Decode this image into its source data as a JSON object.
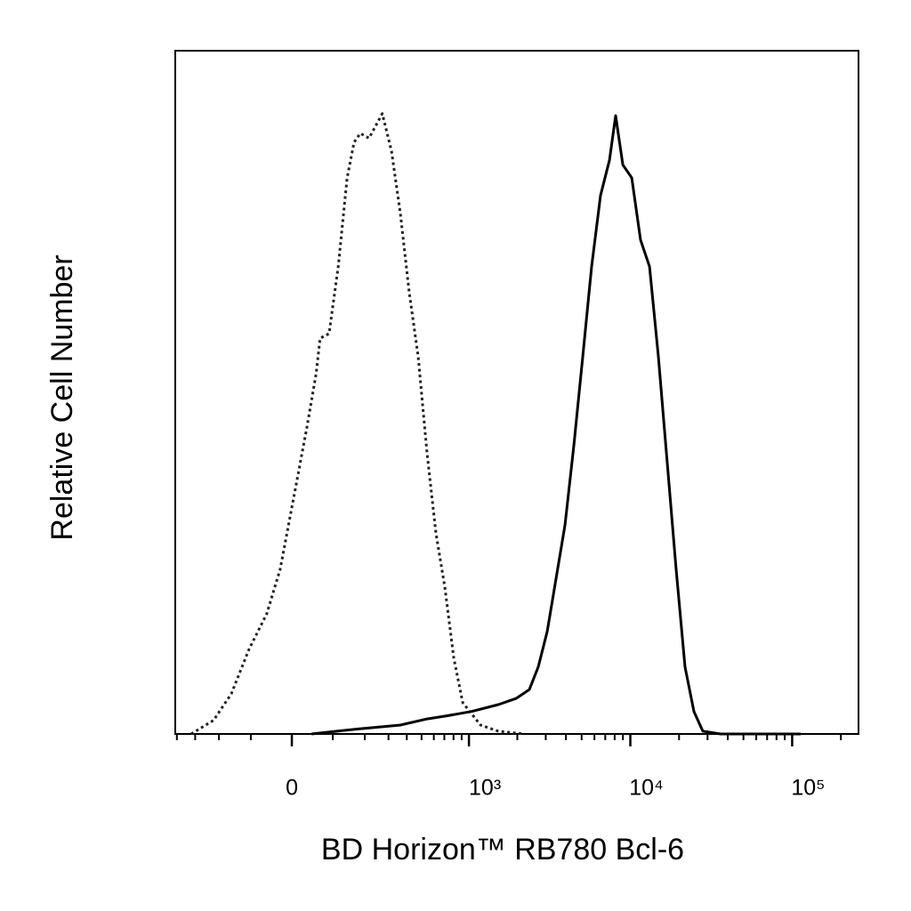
{
  "chart_data": {
    "type": "line",
    "xlabel": "BD Horizon™ RB780 Bcl-6",
    "ylabel": "Relative Cell Number",
    "xscale": "biexponential",
    "xlim": [
      -410,
      257000
    ],
    "xticks": [
      0,
      {
        "value": 1000,
        "label": "10³"
      },
      {
        "value": 10000,
        "label": "10⁴"
      },
      {
        "value": 100000,
        "label": "10⁵"
      }
    ],
    "xminorticks": [
      -400,
      -300,
      -200,
      -100,
      100,
      200,
      300,
      400,
      500,
      600,
      700,
      800,
      900,
      2000,
      3000,
      4000,
      5000,
      6000,
      7000,
      8000,
      9000,
      20000,
      30000,
      40000,
      50000,
      60000,
      70000,
      80000,
      90000,
      200000
    ],
    "ylim": [
      0,
      100
    ],
    "series": [
      {
        "color": "#222222",
        "line_style": "dotted",
        "x": [
          -320,
          -220,
          -157,
          -105,
          -59,
          -27,
          4,
          35,
          57,
          67,
          90,
          115,
          141,
          163,
          184,
          216,
          271,
          315,
          362,
          416,
          475,
          543,
          620,
          705,
          803,
          914,
          1181,
          1526,
          2229
        ],
        "values": [
          0,
          2.0,
          5.9,
          12.4,
          17.6,
          24.1,
          34.5,
          44.9,
          52.7,
          57.9,
          58.6,
          68.4,
          81.4,
          86.6,
          87.9,
          87.2,
          90.8,
          85.3,
          76.2,
          64.5,
          55.3,
          41.0,
          29.3,
          21.5,
          11.1,
          4.6,
          1.3,
          0.4,
          0
        ]
      },
      {
        "color": "#000000",
        "line_style": "solid",
        "x": [
          46,
          169,
          362,
          543,
          705,
          1039,
          1526,
          1965,
          2375,
          2696,
          3062,
          3475,
          3946,
          4478,
          5082,
          5767,
          6545,
          7436,
          8116,
          8991,
          10206,
          11567,
          13138,
          14904,
          16913,
          19197,
          21773,
          24721,
          28042,
          36094,
          112900
        ],
        "values": [
          0,
          0.7,
          1.3,
          2.2,
          2.6,
          3.3,
          4.3,
          5.2,
          6.5,
          9.8,
          15.0,
          22.8,
          30.6,
          42.3,
          55.3,
          68.4,
          78.8,
          84.0,
          90.5,
          83.3,
          81.4,
          72.3,
          68.4,
          55.3,
          39.7,
          24.1,
          9.8,
          3.3,
          0.4,
          0,
          0
        ]
      }
    ]
  }
}
